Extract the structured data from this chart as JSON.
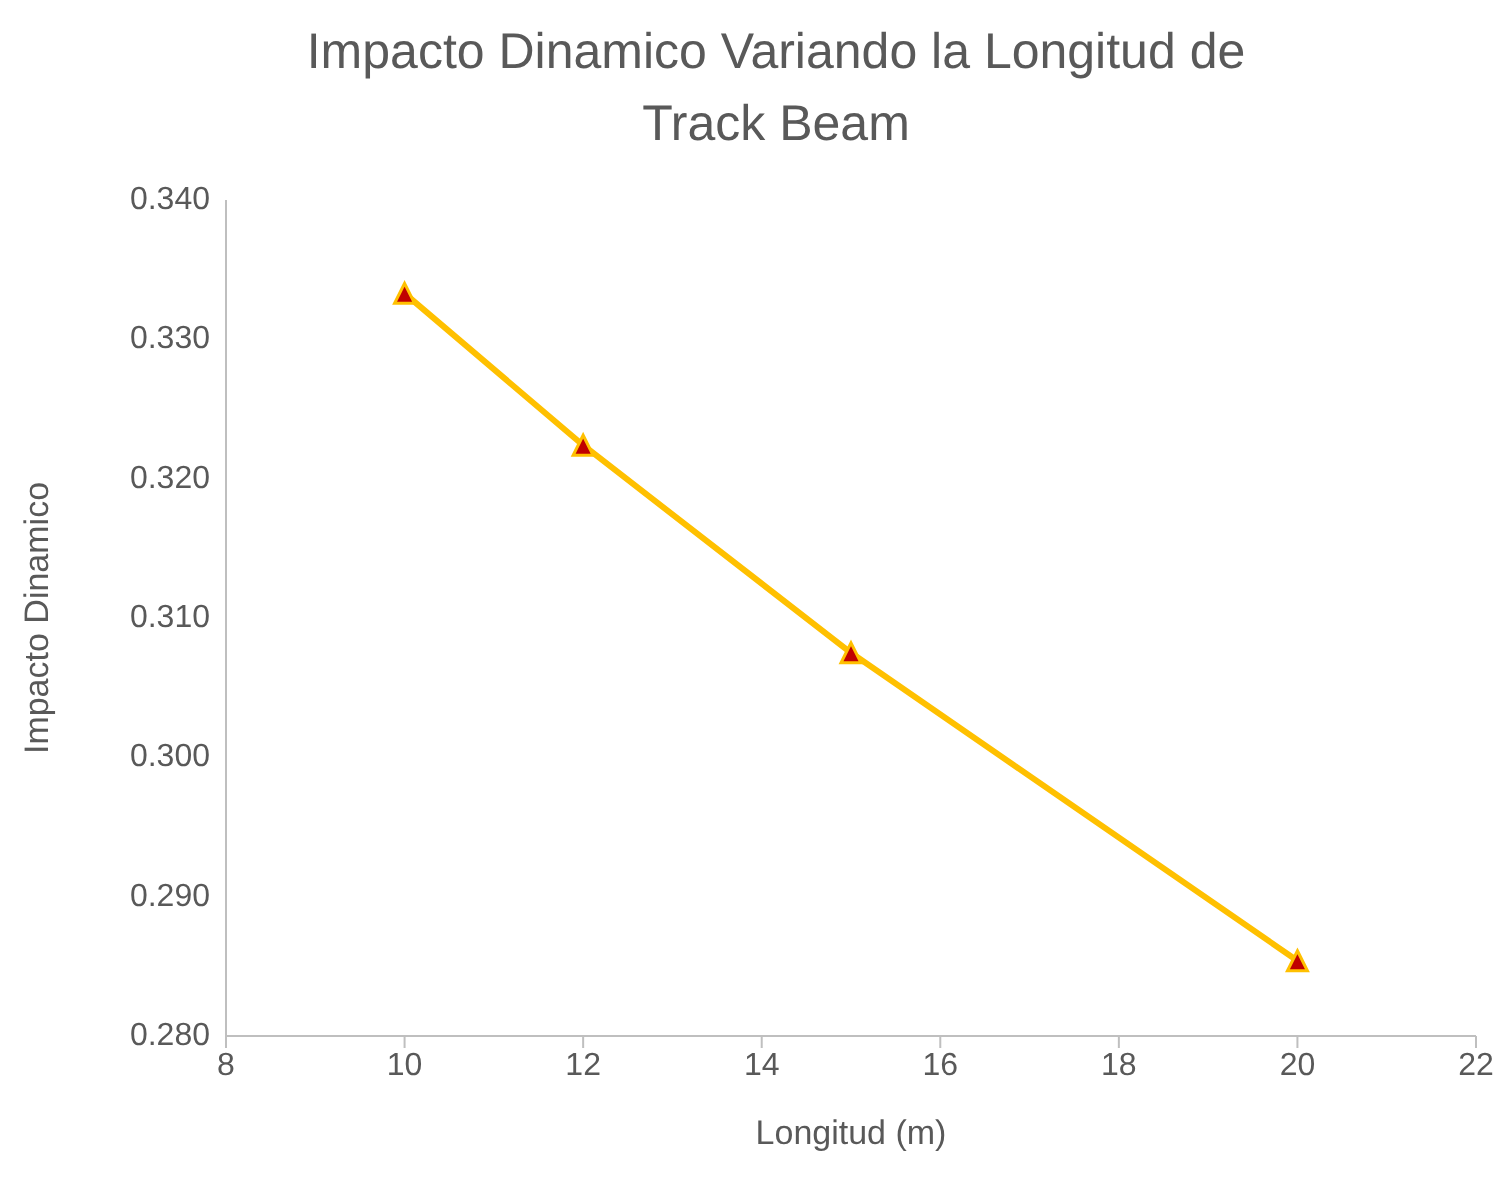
{
  "chart_data": {
    "type": "line",
    "title": "Impacto Dinamico Variando la Longitud de Track Beam",
    "xlabel": "Longitud (m)",
    "ylabel": "Impacto Dinamico",
    "x": [
      10,
      12,
      15,
      20
    ],
    "series": [
      {
        "color": "#ffc000",
        "colors": [
          "#c00000",
          "#c00000",
          "#c00000",
          "#c00000"
        ],
        "values": [
          0.3333,
          0.3224,
          0.3075,
          0.2854
        ]
      }
    ],
    "xlim": [
      8,
      22
    ],
    "xticks": [
      8,
      10,
      12,
      14,
      16,
      18,
      20,
      22
    ],
    "ylim": [
      0.28,
      0.34
    ],
    "yticks": [
      {
        "value": 0.28,
        "label": "0.280"
      },
      {
        "value": 0.29,
        "label": "0.290"
      },
      {
        "value": 0.3,
        "label": "0.300"
      },
      {
        "value": 0.31,
        "label": "0.310"
      },
      {
        "value": 0.32,
        "label": "0.320"
      },
      {
        "value": 0.33,
        "label": "0.330"
      },
      {
        "value": 0.34,
        "label": "0.340"
      }
    ],
    "grid": false,
    "legend": false,
    "marker": "triangle",
    "line_style": "solid"
  }
}
